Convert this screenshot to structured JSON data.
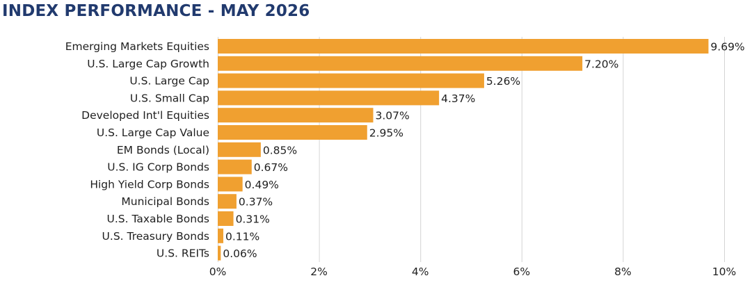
{
  "chart_data": {
    "type": "bar",
    "orientation": "horizontal",
    "title": "INDEX PERFORMANCE - MAY 2026",
    "categories": [
      "Emerging Markets Equities",
      "U.S. Large Cap Growth",
      "U.S. Large Cap",
      "U.S. Small Cap",
      "Developed Int'l Equities",
      "U.S. Large Cap Value",
      "EM Bonds (Local)",
      "U.S. IG Corp Bonds",
      "High Yield Corp Bonds",
      "Municipal Bonds",
      "U.S. Taxable Bonds",
      "U.S. Treasury Bonds",
      "U.S. REITs"
    ],
    "values": [
      9.69,
      7.2,
      5.26,
      4.37,
      3.07,
      2.95,
      0.85,
      0.67,
      0.49,
      0.37,
      0.31,
      0.11,
      0.06
    ],
    "value_labels": [
      "9.69%",
      "7.20%",
      "5.26%",
      "4.37%",
      "3.07%",
      "2.95%",
      "0.85%",
      "0.67%",
      "0.49%",
      "0.37%",
      "0.31%",
      "0.11%",
      "0.06%"
    ],
    "xlim": [
      0,
      10
    ],
    "x_ticks": [
      0,
      2,
      4,
      6,
      8,
      10
    ],
    "x_tick_labels": [
      "0%",
      "2%",
      "4%",
      "6%",
      "8%",
      "10%"
    ],
    "xlabel": "",
    "ylabel": "",
    "grid": "vertical",
    "legend": "none",
    "colors": {
      "bar": "#f0a030",
      "title": "#213a6e",
      "text": "#1f1f1f",
      "grid": "#d4d4d4"
    }
  }
}
